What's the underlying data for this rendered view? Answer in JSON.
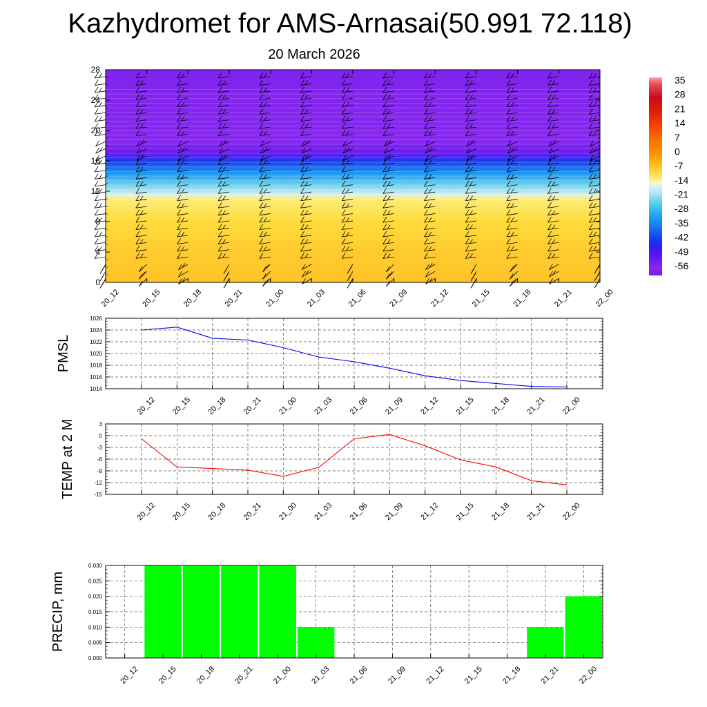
{
  "header": {
    "title": "Kazhydromet for AMS-Arnasai(50.991 72.118)",
    "date": "20 March 2026"
  },
  "colors": {
    "pmsl_line": "#0000ff",
    "temp_line": "#ff0000",
    "precip_bar": "#00ff00",
    "grid": "#555555"
  },
  "chart_data": [
    {
      "type": "heatmap",
      "name": "temperature-wind-cross-section",
      "x": [
        "20_12",
        "20_15",
        "20_18",
        "20_21",
        "21_00",
        "21_03",
        "21_06",
        "21_09",
        "21_12",
        "21_15",
        "21_18",
        "21_21",
        "22_00"
      ],
      "ylim": [
        0,
        28
      ],
      "yticks": [
        0,
        4,
        8,
        12,
        16,
        20,
        24,
        28
      ],
      "colorbar": {
        "labels": [
          "35",
          "28",
          "21",
          "14",
          "7",
          "0",
          "-7",
          "-14",
          "-21",
          "-28",
          "-35",
          "-42",
          "-49",
          "-56"
        ],
        "range": [
          -60,
          38
        ]
      },
      "value_profile": [
        {
          "level": 0,
          "value": -6
        },
        {
          "level": 4,
          "value": -7
        },
        {
          "level": 8,
          "value": -9
        },
        {
          "level": 11,
          "value": -12
        },
        {
          "level": 11.5,
          "value": -16
        },
        {
          "level": 13,
          "value": -24
        },
        {
          "level": 14.5,
          "value": -33
        },
        {
          "level": 16,
          "value": -42
        },
        {
          "level": 17,
          "value": -52
        },
        {
          "level": 18.5,
          "value": -56
        },
        {
          "level": 28,
          "value": -58
        }
      ],
      "wind_barbs": true
    },
    {
      "type": "line",
      "name": "pmsl",
      "ylabel": "PMSL",
      "x": [
        "20_12",
        "20_15",
        "20_18",
        "20_21",
        "21_00",
        "21_03",
        "21_06",
        "21_09",
        "21_12",
        "21_15",
        "21_18",
        "21_21",
        "22_00"
      ],
      "values": [
        1024.0,
        1024.5,
        1022.6,
        1022.3,
        1021.0,
        1019.4,
        1018.6,
        1017.5,
        1016.2,
        1015.4,
        1014.9,
        1014.4,
        1014.3
      ],
      "ylim": [
        1014,
        1026
      ],
      "yticks": [
        1014,
        1016,
        1018,
        1020,
        1022,
        1024,
        1026
      ],
      "grid": true
    },
    {
      "type": "line",
      "name": "temp",
      "ylabel": "TEMP at 2 M",
      "x": [
        "20_12",
        "20_15",
        "20_18",
        "20_21",
        "21_00",
        "21_03",
        "21_06",
        "21_09",
        "21_12",
        "21_15",
        "21_18",
        "21_21",
        "22_00"
      ],
      "values": [
        -0.8,
        -8.0,
        -8.4,
        -8.8,
        -10.4,
        -8.1,
        -0.8,
        0.3,
        -2.6,
        -6.2,
        -8.0,
        -11.5,
        -12.6
      ],
      "ylim": [
        -15,
        3
      ],
      "yticks": [
        -15,
        -12,
        -9,
        -6,
        -3,
        0,
        3
      ],
      "grid": true
    },
    {
      "type": "bar",
      "name": "precip",
      "ylabel": "PRECIP, mm",
      "categories": [
        "20_12",
        "20_15",
        "20_18",
        "20_21",
        "21_00",
        "21_03",
        "21_06",
        "21_09",
        "21_12",
        "21_15",
        "21_18",
        "21_21",
        "22_00"
      ],
      "values": [
        0,
        0.03,
        0.03,
        0.03,
        0.03,
        0.01,
        0,
        0,
        0,
        0,
        0,
        0.01,
        0.02
      ],
      "ylim": [
        0,
        0.03
      ],
      "yticks": [
        "0.000",
        "0.005",
        "0.010",
        "0.015",
        "0.020",
        "0.025",
        "0.030"
      ],
      "grid": true
    }
  ]
}
